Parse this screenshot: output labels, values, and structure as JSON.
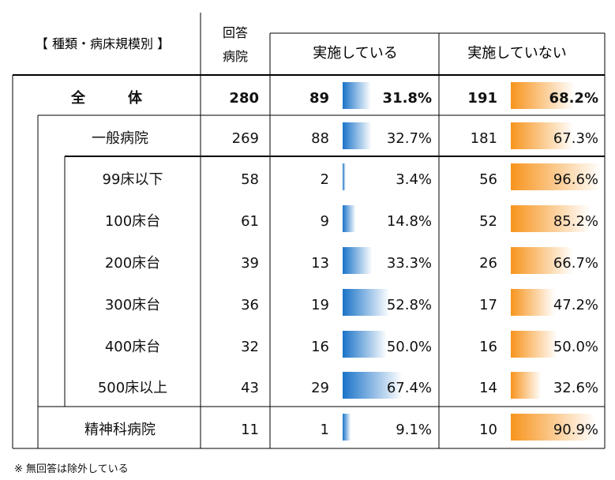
{
  "chart_data": {
    "type": "table",
    "header": {
      "category": "【 種類・病床規模別 】",
      "responses": [
        "回答",
        "病院"
      ],
      "implemented": "実施している",
      "not_implemented": "実施していない"
    },
    "rows": [
      {
        "label": "全　　　体",
        "level": 0,
        "bold": true,
        "n": 280,
        "yes_count": 89,
        "yes_pct": 31.8,
        "no_count": 191,
        "no_pct": 68.2
      },
      {
        "label": "一般病院",
        "level": 1,
        "bold": false,
        "n": 269,
        "yes_count": 88,
        "yes_pct": 32.7,
        "no_count": 181,
        "no_pct": 67.3
      },
      {
        "label": "99床以下",
        "level": 2,
        "bold": false,
        "n": 58,
        "yes_count": 2,
        "yes_pct": 3.4,
        "no_count": 56,
        "no_pct": 96.6
      },
      {
        "label": "100床台",
        "level": 2,
        "bold": false,
        "n": 61,
        "yes_count": 9,
        "yes_pct": 14.8,
        "no_count": 52,
        "no_pct": 85.2
      },
      {
        "label": "200床台",
        "level": 2,
        "bold": false,
        "n": 39,
        "yes_count": 13,
        "yes_pct": 33.3,
        "no_count": 26,
        "no_pct": 66.7
      },
      {
        "label": "300床台",
        "level": 2,
        "bold": false,
        "n": 36,
        "yes_count": 19,
        "yes_pct": 52.8,
        "no_count": 17,
        "no_pct": 47.2
      },
      {
        "label": "400床台",
        "level": 2,
        "bold": false,
        "n": 32,
        "yes_count": 16,
        "yes_pct": 50.0,
        "no_count": 16,
        "no_pct": 50.0
      },
      {
        "label": "500床以上",
        "level": 2,
        "bold": false,
        "n": 43,
        "yes_count": 29,
        "yes_pct": 67.4,
        "no_count": 14,
        "no_pct": 32.6
      },
      {
        "label": "精神科病院",
        "level": 1,
        "bold": false,
        "n": 11,
        "yes_count": 1,
        "yes_pct": 9.1,
        "no_count": 10,
        "no_pct": 90.9
      }
    ],
    "colors": {
      "implemented_bar": "#1a73c8",
      "not_implemented_bar": "#f7941d"
    }
  },
  "footnote": "※ 無回答は除外している"
}
